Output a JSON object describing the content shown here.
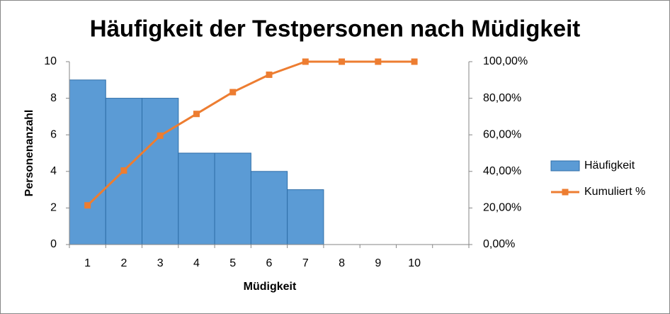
{
  "chart_data": {
    "type": "combo",
    "title": "Häufigkeit der Testpersonen nach Müdigkeit",
    "xlabel": "Müdigkeit",
    "ylabel": "Personenanzahl",
    "categories": [
      1,
      2,
      3,
      4,
      5,
      6,
      7,
      8,
      9,
      10,
      null
    ],
    "series": [
      {
        "name": "Häufigkeit",
        "type": "bar",
        "color": "#5b9bd5",
        "values": [
          9,
          8,
          8,
          5,
          5,
          4,
          3,
          0,
          0,
          0,
          null
        ]
      },
      {
        "name": "Kumuliert %",
        "type": "line",
        "color": "#ed7d31",
        "axis": "y2",
        "values": [
          21.43,
          40.48,
          59.52,
          71.43,
          83.33,
          92.86,
          100,
          100,
          100,
          100,
          null
        ]
      }
    ],
    "ylim": [
      0,
      10
    ],
    "yticks": [
      0,
      2,
      4,
      6,
      8,
      10
    ],
    "y2lim": [
      0,
      100
    ],
    "y2ticks": [
      {
        "value": 0,
        "label": "0,00%"
      },
      {
        "value": 20,
        "label": "20,00%"
      },
      {
        "value": 40,
        "label": "40,00%"
      },
      {
        "value": 60,
        "label": "60,00%"
      },
      {
        "value": 80,
        "label": "80,00%"
      },
      {
        "value": 100,
        "label": "100,00%"
      }
    ],
    "legend": "right"
  }
}
